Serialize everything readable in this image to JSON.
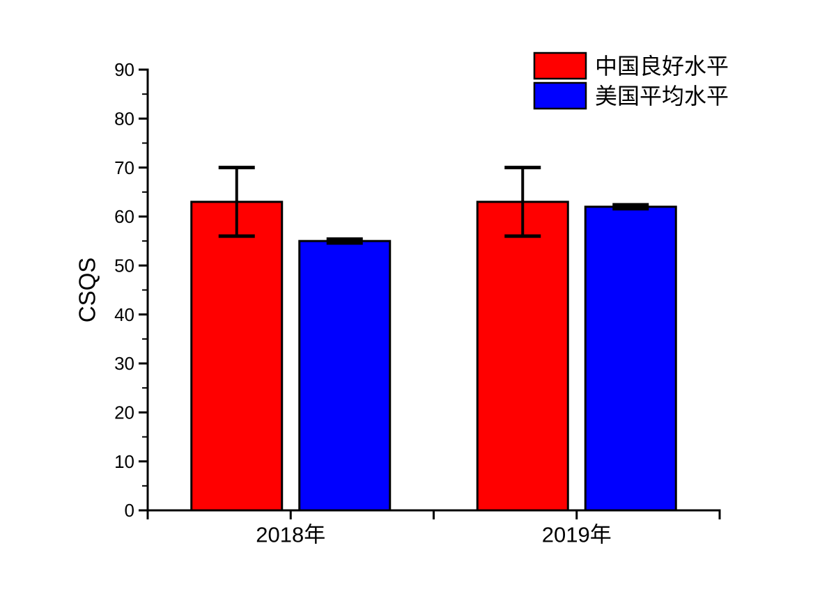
{
  "chart_data": {
    "type": "bar",
    "categories": [
      "2018年",
      "2019年"
    ],
    "series": [
      {
        "name": "中国良好水平",
        "color": "#FF0000",
        "values": [
          63,
          63
        ],
        "errors": [
          7,
          7
        ]
      },
      {
        "name": "美国平均水平",
        "color": "#0000FF",
        "values": [
          55,
          62
        ],
        "errors": [
          0.4,
          0.4
        ]
      }
    ],
    "title": "",
    "xlabel": "",
    "ylabel": "CSQS",
    "ylim": [
      0,
      90
    ],
    "ytick_step": 10,
    "yminor_step": 5,
    "grid": false,
    "legend_position": "top-right",
    "axis_color": "#000000",
    "error_bar_color": "#000000",
    "background_color": "#FFFFFF"
  }
}
